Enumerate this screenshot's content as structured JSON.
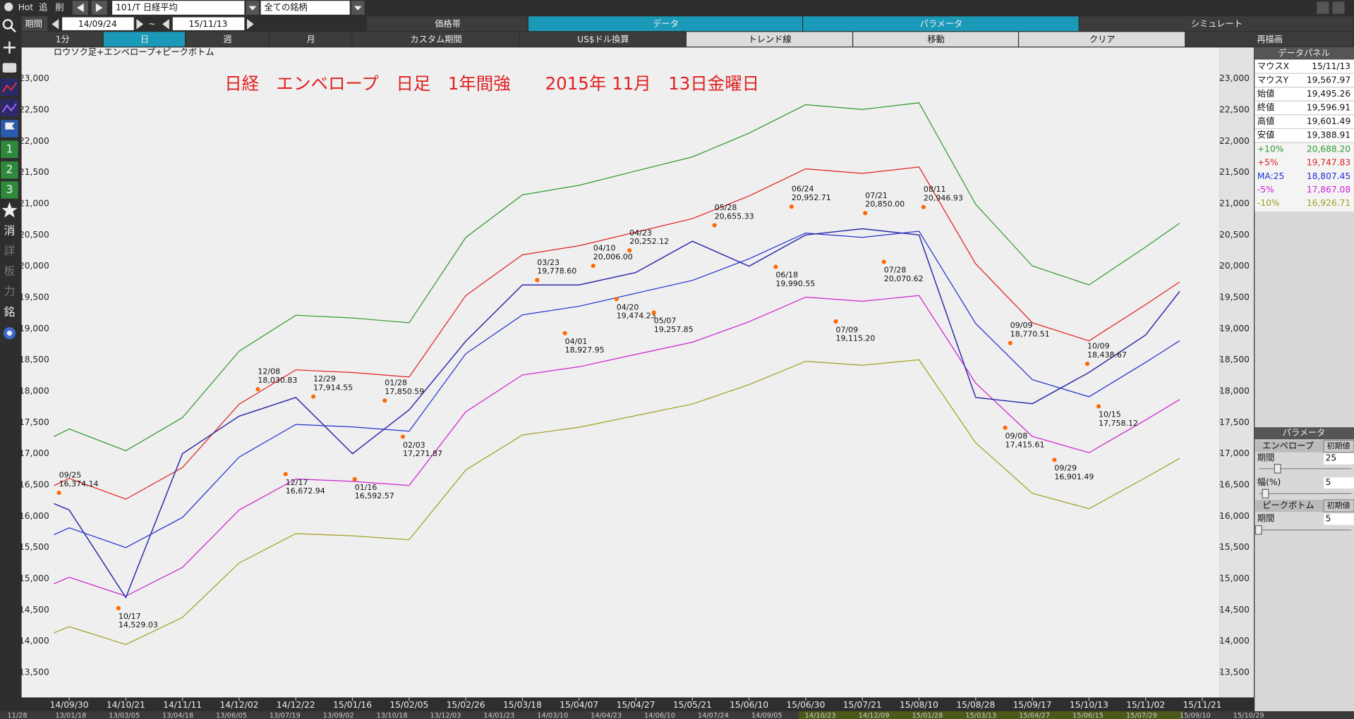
{
  "toolbar": {
    "hot": "Hot",
    "add": "追",
    "del": "削",
    "symbol": "101/T 日経平均",
    "universe": "全ての銘柄",
    "period_label": "期間",
    "from": "14/09/24",
    "tilde": "~",
    "to": "15/11/13",
    "tabs": [
      "価格帯",
      "データ",
      "パラメータ",
      "シミュレート"
    ],
    "buttons": [
      "1分",
      "日",
      "週",
      "月",
      "カスタム期間",
      "US$ドル換算",
      "トレンド線",
      "移動",
      "クリア",
      "再描画"
    ]
  },
  "sidebar": [
    "1",
    "2",
    "3",
    "消",
    "詳",
    "板",
    "力",
    "銘"
  ],
  "data_panel": {
    "title": "データパネル",
    "rows": [
      [
        "マウスX",
        "15/11/13"
      ],
      [
        "マウスY",
        "19,567.97"
      ],
      [
        "始値",
        "19,495.26"
      ],
      [
        "終値",
        "19,596.91"
      ],
      [
        "高値",
        "19,601.49"
      ],
      [
        "安値",
        "19,388.91"
      ]
    ],
    "envelope_values": [
      "20,688.20",
      "19,747.83",
      "18,807.45",
      "17,867.08",
      "16,926.71"
    ]
  },
  "params": {
    "title": "パラメータ",
    "envelope": "エンベロープ",
    "reset": "初期値",
    "period_label": "期間",
    "period": "25",
    "width_label": "幅(%)",
    "width": "5",
    "peak": "ピークボトム",
    "peak_reset": "初期値",
    "peak_period_label": "期間",
    "peak_period": "5"
  },
  "overview_dates": [
    "11/28",
    "13/01/18",
    "13/03/05",
    "13/04/18",
    "13/06/05",
    "13/07/19",
    "13/09/02",
    "13/10/18",
    "13/12/03",
    "14/01/23",
    "14/03/10",
    "14/04/23",
    "14/06/10",
    "14/07/24",
    "14/09/05",
    "14/10/23",
    "14/12/09",
    "15/01/28",
    "15/03/13",
    "15/04/27",
    "15/06/15",
    "15/07/29",
    "15/09/10",
    "15/10/29"
  ],
  "chart_data": {
    "type": "line",
    "subtitle": "ロウソク足+エンベロープ+ピークボトム",
    "title": "日経　エンベロープ　日足　1年間強　　2015年 11月　13日金曜日",
    "xlim": [
      -0.84,
      20.3
    ],
    "ylim": [
      13100,
      23500
    ],
    "xticks": [
      {
        "value": 0,
        "label": "14/09/30"
      },
      {
        "value": 1,
        "label": "14/10/21"
      },
      {
        "value": 2,
        "label": "14/11/11"
      },
      {
        "value": 3,
        "label": "14/12/02"
      },
      {
        "value": 4,
        "label": "14/12/22"
      },
      {
        "value": 5,
        "label": "15/01/16"
      },
      {
        "value": 6,
        "label": "15/02/05"
      },
      {
        "value": 7,
        "label": "15/02/26"
      },
      {
        "value": 8,
        "label": "15/03/18"
      },
      {
        "value": 9,
        "label": "15/04/07"
      },
      {
        "value": 10,
        "label": "15/04/27"
      },
      {
        "value": 11,
        "label": "15/05/21"
      },
      {
        "value": 12,
        "label": "15/06/10"
      },
      {
        "value": 13,
        "label": "15/06/30"
      },
      {
        "value": 14,
        "label": "15/07/21"
      },
      {
        "value": 15,
        "label": "15/08/10"
      },
      {
        "value": 16,
        "label": "15/08/28"
      },
      {
        "value": 17,
        "label": "15/09/17"
      },
      {
        "value": 18,
        "label": "15/10/13"
      },
      {
        "value": 19,
        "label": "15/11/02"
      },
      {
        "value": 20,
        "label": "15/11/21"
      }
    ],
    "yticks": [
      {
        "value": 13500,
        "label": "13,500"
      },
      {
        "value": 14000,
        "label": "14,000"
      },
      {
        "value": 14500,
        "label": "14,500"
      },
      {
        "value": 15000,
        "label": "15,000"
      },
      {
        "value": 15500,
        "label": "15,500"
      },
      {
        "value": 16000,
        "label": "16,000"
      },
      {
        "value": 16500,
        "label": "16,500"
      },
      {
        "value": 17000,
        "label": "17,000"
      },
      {
        "value": 17500,
        "label": "17,500"
      },
      {
        "value": 18000,
        "label": "18,000"
      },
      {
        "value": 18500,
        "label": "18,500"
      },
      {
        "value": 19000,
        "label": "19,000"
      },
      {
        "value": 19500,
        "label": "19,500"
      },
      {
        "value": 20000,
        "label": "20,000"
      },
      {
        "value": 20500,
        "label": "20,500"
      },
      {
        "value": 21000,
        "label": "21,000"
      },
      {
        "value": 21500,
        "label": "21,500"
      },
      {
        "value": 22000,
        "label": "22,000"
      },
      {
        "value": 22500,
        "label": "22,500"
      },
      {
        "value": 23000,
        "label": "23,000"
      }
    ],
    "x": [
      -0.27,
      0,
      1,
      2,
      3,
      4,
      5,
      6,
      7,
      8,
      9,
      10,
      11,
      12,
      13,
      14,
      15,
      16,
      17,
      18,
      19,
      19.6
    ],
    "price_color": "#2a2aa8",
    "price_values": [
      16200,
      16100,
      14700,
      17000,
      17600,
      17900,
      17000,
      17700,
      18800,
      19700,
      19700,
      19900,
      20400,
      20000,
      20500,
      20600,
      20500,
      17900,
      17800,
      18300,
      18900,
      19597
    ],
    "series": [
      {
        "name": "+10%",
        "color": "#2f9a2f",
        "values": [
          17273,
          17395,
          17047,
          17577,
          18640,
          19216,
          19171,
          19095,
          20460,
          21143,
          21295,
          21523,
          21749,
          22129,
          22584,
          22508,
          22615,
          20991,
          20005,
          19701,
          20308,
          20688
        ]
      },
      {
        "name": "+5%",
        "color": "#e02020",
        "values": [
          16488,
          16605,
          16272,
          16778,
          17792,
          18342,
          18299,
          18227,
          19530,
          20182,
          20327,
          20544,
          20761,
          21123,
          21558,
          21485,
          21587,
          20037,
          19095,
          18806,
          19385,
          19747
        ]
      },
      {
        "name": "MA:25",
        "color": "#2030d0",
        "values": [
          15703,
          15814,
          15497,
          15979,
          16945,
          17469,
          17428,
          17359,
          18600,
          19221,
          19359,
          19566,
          19772,
          20117,
          20531,
          20462,
          20559,
          19083,
          18186,
          17910,
          18462,
          18807
        ]
      },
      {
        "name": "-5%",
        "color": "#d020d0",
        "values": [
          14918,
          15023,
          14722,
          15180,
          16098,
          16596,
          16557,
          16491,
          17670,
          18260,
          18391,
          18588,
          18783,
          19111,
          19504,
          19439,
          19531,
          18129,
          17277,
          17015,
          17539,
          17867
        ]
      },
      {
        "name": "-10%",
        "color": "#a0a020",
        "values": [
          14133,
          14233,
          13947,
          14381,
          15251,
          15722,
          15685,
          15623,
          16740,
          17299,
          17423,
          17609,
          17795,
          18105,
          18478,
          18416,
          18503,
          17175,
          16367,
          16119,
          16616,
          16926
        ]
      }
    ],
    "peaks": [
      {
        "x": -0.18,
        "value": 16374.14,
        "label": "16,374.14",
        "date": "09/25",
        "position": "above"
      },
      {
        "x": 0.87,
        "value": 14529.03,
        "label": "14,529.03",
        "date": "10/17",
        "position": "below"
      },
      {
        "x": 3.33,
        "value": 18030.83,
        "label": "18,030.83",
        "date": "12/08",
        "position": "above"
      },
      {
        "x": 3.82,
        "value": 16672.94,
        "label": "16,672.94",
        "date": "12/17",
        "position": "below"
      },
      {
        "x": 4.31,
        "value": 17914.55,
        "label": "17,914.55",
        "date": "12/29",
        "position": "above"
      },
      {
        "x": 5.04,
        "value": 16592.57,
        "label": "16,592.57",
        "date": "01/16",
        "position": "below"
      },
      {
        "x": 5.57,
        "value": 17850.59,
        "label": "17,850.59",
        "date": "01/28",
        "position": "above"
      },
      {
        "x": 5.89,
        "value": 17271.87,
        "label": "17,271.87",
        "date": "02/03",
        "position": "below"
      },
      {
        "x": 8.26,
        "value": 19778.6,
        "label": "19,778.60",
        "date": "03/23",
        "position": "above"
      },
      {
        "x": 8.75,
        "value": 18927.95,
        "label": "18,927.95",
        "date": "04/01",
        "position": "below"
      },
      {
        "x": 9.25,
        "value": 20006,
        "label": "20,006.00",
        "date": "04/10",
        "position": "above"
      },
      {
        "x": 9.66,
        "value": 19474.23,
        "label": "19,474.23",
        "date": "04/20",
        "position": "below"
      },
      {
        "x": 9.89,
        "value": 20252.12,
        "label": "20,252.12",
        "date": "04/23",
        "position": "above"
      },
      {
        "x": 10.32,
        "value": 19257.85,
        "label": "19,257.85",
        "date": "05/07",
        "position": "below"
      },
      {
        "x": 11.39,
        "value": 20655.33,
        "label": "20,655.33",
        "date": "05/28",
        "position": "above"
      },
      {
        "x": 12.47,
        "value": 19990.55,
        "label": "19,990.55",
        "date": "06/18",
        "position": "below"
      },
      {
        "x": 12.75,
        "value": 20952.71,
        "label": "20,952.71",
        "date": "06/24",
        "position": "above"
      },
      {
        "x": 13.53,
        "value": 19115.2,
        "label": "19,115.20",
        "date": "07/09",
        "position": "below"
      },
      {
        "x": 14.05,
        "value": 20850,
        "label": "20,850.00",
        "date": "07/21",
        "position": "above"
      },
      {
        "x": 14.38,
        "value": 20070.62,
        "label": "20,070.62",
        "date": "07/28",
        "position": "below"
      },
      {
        "x": 15.08,
        "value": 20946.93,
        "label": "20,946.93",
        "date": "08/11",
        "position": "above"
      },
      {
        "x": 16.52,
        "value": 17415.61,
        "label": "17,415.61",
        "date": "09/08",
        "position": "below"
      },
      {
        "x": 16.61,
        "value": 18770.51,
        "label": "18,770.51",
        "date": "09/09",
        "position": "above"
      },
      {
        "x": 17.39,
        "value": 16901.49,
        "label": "16,901.49",
        "date": "09/29",
        "position": "below"
      },
      {
        "x": 17.97,
        "value": 18438.67,
        "label": "18,438.67",
        "date": "10/09",
        "position": "above"
      },
      {
        "x": 18.17,
        "value": 17758.12,
        "label": "17,758.12",
        "date": "10/15",
        "position": "below"
      }
    ]
  }
}
